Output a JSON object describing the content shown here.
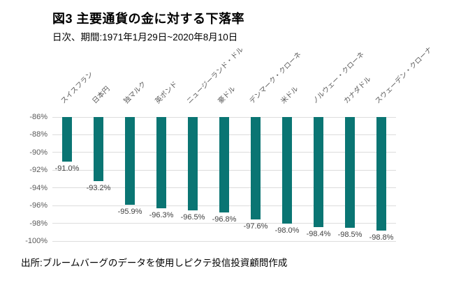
{
  "figure": {
    "title": "図3 主要通貨の金に対する下落率",
    "subtitle": "日次、期間:1971年1月29日~2020年8月10日",
    "source": "出所:ブルームバーグのデータを使用しピクテ投信投資顧問作成"
  },
  "chart_data": {
    "type": "bar",
    "title": "図3 主要通貨の金に対する下落率",
    "subtitle": "日次、期間:1971年1月29日~2020年8月10日",
    "categories": [
      "スイスフラン",
      "日本円",
      "独マルク",
      "英ポンド",
      "ニュージーランド・ドル",
      "豪ドル",
      "デンマーク・クローネ",
      "米ドル",
      "ノルウェー・クローネ",
      "カナダドル",
      "スウェーデン・クローナ"
    ],
    "values": [
      -91.0,
      -93.2,
      -95.9,
      -96.3,
      -96.5,
      -96.8,
      -97.6,
      -98.0,
      -98.4,
      -98.5,
      -98.8
    ],
    "data_labels": [
      "-91.0%",
      "-93.2%",
      "-95.9%",
      "-96.3%",
      "-96.5%",
      "-96.8%",
      "-97.6%",
      "-98.0%",
      "-98.4%",
      "-98.5%",
      "-98.8%"
    ],
    "y_ticks": [
      "-86%",
      "-88%",
      "-90%",
      "-92%",
      "-94%",
      "-96%",
      "-98%",
      "-100%"
    ],
    "ylim": [
      -100,
      -86
    ],
    "bars_anchor": -86,
    "xlabel": "",
    "ylabel": "",
    "grid": true,
    "legend": "none",
    "bar_color": "#0A7573",
    "gridline_color": "#dcdcdc",
    "axis_label_color": "#595959",
    "data_label_color": "#404040"
  }
}
